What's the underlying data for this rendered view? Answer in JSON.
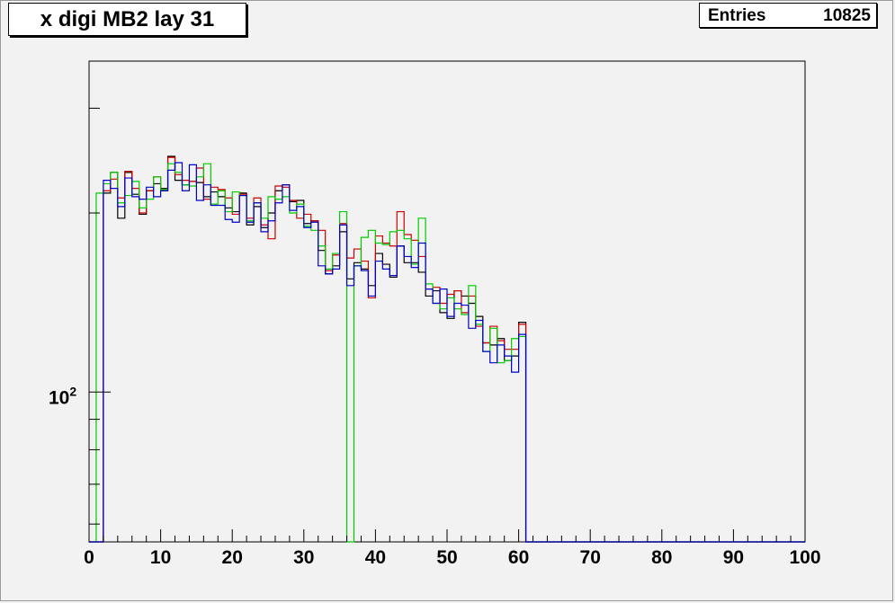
{
  "title": "x digi MB2 lay 31",
  "stats": {
    "entries_label": "Entries",
    "entries_value": "10825"
  },
  "chart_data": {
    "type": "line",
    "style": "step-histogram",
    "title": "x digi MB2 lay 31",
    "xlabel": "",
    "ylabel": "",
    "xlim": [
      0,
      100
    ],
    "ylim": [
      56,
      360
    ],
    "y_scale": "log",
    "grid": false,
    "bins": {
      "start": 0,
      "width": 1,
      "count": 100
    },
    "x_tick_labels": [
      "0",
      "10",
      "20",
      "30",
      "40",
      "50",
      "60",
      "70",
      "80",
      "90",
      "100"
    ],
    "y_tick_label": "10^2",
    "colors": {
      "black": "#000000",
      "red": "#cc0000",
      "green": "#00cc00",
      "blue": "#0000cc"
    },
    "series": [
      {
        "color": "#000000",
        "values": [
          0,
          0,
          216,
          234,
          196,
          234,
          215,
          199,
          218,
          224,
          220,
          249,
          227,
          223,
          226,
          225,
          213,
          217,
          213,
          204,
          201,
          216,
          191,
          205,
          189,
          200,
          218,
          223,
          209,
          210,
          192,
          194,
          173,
          158,
          163,
          186,
          155,
          165,
          161,
          151,
          171,
          164,
          156,
          176,
          165,
          165,
          159,
          145,
          148,
          136,
          133,
          148,
          145,
          141,
          134,
          121,
          120,
          123,
          113,
          115,
          131,
          0,
          0,
          0,
          0,
          0,
          0,
          0,
          0,
          0,
          0,
          0,
          0,
          0,
          0,
          0,
          0,
          0,
          0,
          0,
          0,
          0,
          0,
          0,
          0,
          0,
          0,
          0,
          0,
          0,
          0,
          0,
          0,
          0,
          0,
          0,
          0,
          0,
          0,
          0
        ]
      },
      {
        "color": "#cc0000",
        "values": [
          0,
          0,
          218,
          228,
          212,
          235,
          220,
          200,
          218,
          230,
          218,
          248,
          232,
          227,
          226,
          238,
          211,
          221,
          219,
          212,
          199,
          215,
          196,
          212,
          191,
          181,
          222,
          221,
          210,
          196,
          199,
          194,
          187,
          160,
          170,
          192,
          168,
          174,
          166,
          144,
          183,
          178,
          176,
          201,
          184,
          180,
          169,
          149,
          150,
          141,
          146,
          148,
          136,
          145,
          129,
          121,
          129,
          122,
          118,
          118,
          130,
          0,
          0,
          0,
          0,
          0,
          0,
          0,
          0,
          0,
          0,
          0,
          0,
          0,
          0,
          0,
          0,
          0,
          0,
          0,
          0,
          0,
          0,
          0,
          0,
          0,
          0,
          0,
          0,
          0,
          0,
          0,
          0,
          0,
          0,
          0,
          0,
          0,
          0,
          0
        ]
      },
      {
        "color": "#00cc00",
        "values": [
          0,
          216,
          224,
          234,
          208,
          214,
          226,
          204,
          211,
          230,
          219,
          242,
          234,
          223,
          222,
          230,
          242,
          207,
          218,
          201,
          217,
          214,
          194,
          208,
          196,
          213,
          211,
          213,
          200,
          207,
          190,
          187,
          176,
          161,
          171,
          201,
          56,
          163,
          182,
          187,
          178,
          177,
          186,
          187,
          181,
          164,
          196,
          152,
          141,
          138,
          144,
          138,
          135,
          151,
          130,
          117,
          128,
          112,
          113,
          123,
          124,
          0,
          0,
          0,
          0,
          0,
          0,
          0,
          0,
          0,
          0,
          0,
          0,
          0,
          0,
          0,
          0,
          0,
          0,
          0,
          0,
          0,
          0,
          0,
          0,
          0,
          0,
          0,
          0,
          0,
          0,
          0,
          0,
          0,
          0,
          0,
          0,
          0,
          0,
          0
        ]
      },
      {
        "color": "#0000cc",
        "values": [
          0,
          0,
          227,
          220,
          205,
          229,
          213,
          211,
          221,
          213,
          218,
          236,
          243,
          218,
          241,
          210,
          223,
          206,
          206,
          195,
          193,
          214,
          193,
          208,
          186,
          194,
          208,
          223,
          202,
          205,
          189,
          193,
          163,
          158,
          161,
          191,
          151,
          163,
          160,
          145,
          166,
          161,
          157,
          176,
          169,
          162,
          178,
          149,
          141,
          149,
          134,
          141,
          140,
          128,
          132,
          117,
          112,
          120,
          115,
          108,
          125,
          0,
          0,
          0,
          0,
          0,
          0,
          0,
          0,
          0,
          0,
          0,
          0,
          0,
          0,
          0,
          0,
          0,
          0,
          0,
          0,
          0,
          0,
          0,
          0,
          0,
          0,
          0,
          0,
          0,
          0,
          0,
          0,
          0,
          0,
          0,
          0,
          0,
          0,
          0
        ]
      }
    ]
  }
}
